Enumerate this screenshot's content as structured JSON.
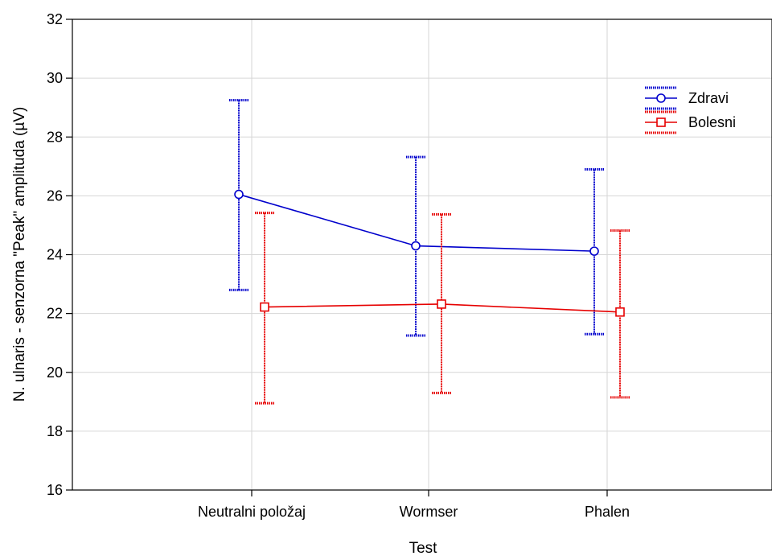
{
  "chart_data": {
    "type": "line",
    "xlabel": "Test",
    "ylabel": "N. ulnaris - senzorna \"Peak\" amplituda (µV)",
    "categories": [
      "Neutralni položaj",
      "Wormser",
      "Phalen"
    ],
    "ylim": [
      16,
      32
    ],
    "yticks": [
      16,
      18,
      20,
      22,
      24,
      26,
      28,
      30,
      32
    ],
    "grid": true,
    "legend_position": "top-right",
    "series": [
      {
        "name": "Zdravi",
        "color": "#0000cc",
        "marker": "circle",
        "values": [
          26.05,
          24.3,
          24.12
        ],
        "lower": [
          22.8,
          21.25,
          21.3
        ],
        "upper": [
          29.25,
          27.32,
          26.9
        ]
      },
      {
        "name": "Bolesni",
        "color": "#e60000",
        "marker": "square",
        "values": [
          22.22,
          22.32,
          22.05
        ],
        "lower": [
          18.95,
          19.3,
          19.15
        ],
        "upper": [
          25.42,
          25.37,
          24.82
        ]
      }
    ]
  }
}
